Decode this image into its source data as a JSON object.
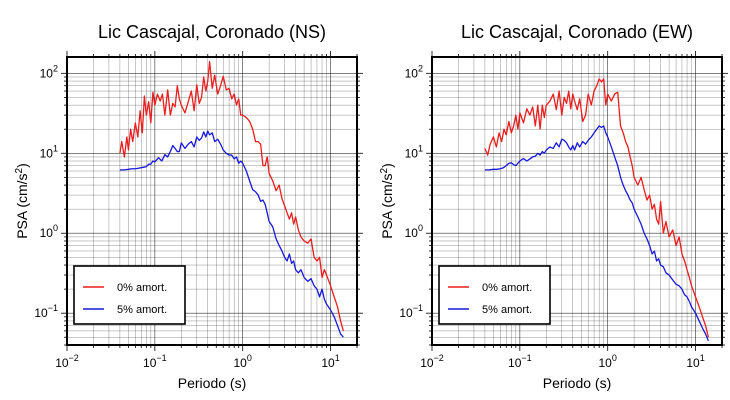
{
  "chart_data": [
    {
      "type": "line",
      "title": "Lic Cascajal, Coronado (NS)",
      "xlabel": "Periodo (s)",
      "ylabel_main": "PSA (cm/s",
      "ylabel_sup": "2",
      "ylabel_close": ")",
      "xscale": "log",
      "yscale": "log",
      "xlim": [
        0.01,
        20
      ],
      "ylim": [
        0.04,
        160
      ],
      "grid": true,
      "legend_position": "bottom-left",
      "x_tick_labels": [
        {
          "value": 0.01,
          "base": "10",
          "exp": "−2"
        },
        {
          "value": 0.1,
          "base": "10",
          "exp": "−1"
        },
        {
          "value": 1,
          "base": "10",
          "exp": "0"
        },
        {
          "value": 10,
          "base": "10",
          "exp": "1"
        }
      ],
      "y_tick_labels": [
        {
          "value": 0.1,
          "base": "10",
          "exp": "−1"
        },
        {
          "value": 1,
          "base": "10",
          "exp": "0"
        },
        {
          "value": 10,
          "base": "10",
          "exp": "1"
        },
        {
          "value": 100,
          "base": "10",
          "exp": "2"
        }
      ],
      "series": [
        {
          "name": "0% amort.",
          "color": "#ee1c1c",
          "x": [
            0.04,
            0.042,
            0.045,
            0.048,
            0.05,
            0.053,
            0.056,
            0.06,
            0.064,
            0.068,
            0.072,
            0.076,
            0.08,
            0.085,
            0.09,
            0.095,
            0.1,
            0.107,
            0.115,
            0.122,
            0.13,
            0.14,
            0.15,
            0.16,
            0.17,
            0.18,
            0.19,
            0.2,
            0.22,
            0.24,
            0.26,
            0.28,
            0.3,
            0.32,
            0.34,
            0.36,
            0.38,
            0.4,
            0.42,
            0.45,
            0.48,
            0.52,
            0.56,
            0.6,
            0.65,
            0.7,
            0.75,
            0.8,
            0.85,
            0.9,
            0.95,
            1.0,
            1.1,
            1.2,
            1.3,
            1.4,
            1.5,
            1.6,
            1.7,
            1.8,
            1.9,
            2.0,
            2.2,
            2.4,
            2.6,
            2.8,
            3.0,
            3.2,
            3.4,
            3.6,
            3.8,
            4.0,
            4.3,
            4.6,
            5.0,
            5.5,
            6.0,
            6.5,
            7.0,
            7.5,
            8.0,
            8.5,
            9.0,
            10,
            11,
            12,
            13,
            14
          ],
          "values": [
            10,
            14,
            9,
            16,
            11,
            20,
            14,
            24,
            16,
            34,
            18,
            52,
            30,
            44,
            24,
            58,
            40,
            55,
            45,
            55,
            30,
            62,
            30,
            42,
            38,
            70,
            48,
            40,
            32,
            44,
            60,
            34,
            72,
            42,
            50,
            90,
            60,
            80,
            140,
            65,
            95,
            55,
            70,
            92,
            62,
            65,
            48,
            55,
            40,
            48,
            30,
            30,
            28,
            25,
            20,
            14,
            14,
            13,
            7,
            7,
            9,
            5.6,
            4.5,
            3.4,
            4.0,
            2.7,
            2.2,
            1.8,
            1.5,
            1.8,
            1.3,
            1.6,
            1.1,
            0.9,
            0.8,
            0.75,
            0.85,
            0.5,
            0.45,
            0.5,
            0.28,
            0.35,
            0.3,
            0.22,
            0.16,
            0.12,
            0.08,
            0.06
          ]
        },
        {
          "name": "5% amort.",
          "color": "#1818dd",
          "x": [
            0.04,
            0.045,
            0.05,
            0.055,
            0.06,
            0.065,
            0.07,
            0.075,
            0.08,
            0.085,
            0.09,
            0.095,
            0.1,
            0.11,
            0.12,
            0.13,
            0.14,
            0.15,
            0.16,
            0.17,
            0.18,
            0.19,
            0.2,
            0.22,
            0.24,
            0.26,
            0.28,
            0.3,
            0.32,
            0.34,
            0.36,
            0.38,
            0.4,
            0.42,
            0.45,
            0.48,
            0.52,
            0.56,
            0.6,
            0.65,
            0.7,
            0.75,
            0.8,
            0.85,
            0.9,
            0.95,
            1.0,
            1.1,
            1.2,
            1.3,
            1.4,
            1.5,
            1.6,
            1.7,
            1.8,
            1.9,
            2.0,
            2.2,
            2.4,
            2.6,
            2.8,
            3.0,
            3.2,
            3.4,
            3.6,
            3.8,
            4.0,
            4.3,
            4.6,
            5.0,
            5.5,
            6.0,
            6.5,
            7.0,
            7.5,
            8.0,
            8.5,
            9.0,
            10,
            11,
            12,
            13,
            14
          ],
          "values": [
            6.2,
            6.2,
            6.3,
            6.4,
            6.4,
            6.5,
            6.6,
            6.7,
            6.8,
            7.3,
            7.3,
            8.0,
            7.8,
            8.8,
            8.0,
            9.6,
            9.0,
            10.5,
            12.5,
            11.5,
            10.5,
            10.5,
            13.5,
            11.5,
            13.0,
            14.0,
            12.0,
            16.0,
            14.5,
            15.5,
            18.5,
            16.0,
            19.0,
            17.0,
            18.0,
            14.0,
            15.0,
            13.0,
            11.0,
            10.0,
            9.5,
            9.5,
            8.5,
            9.0,
            7.5,
            8.0,
            7.5,
            6.0,
            4.5,
            3.5,
            3.3,
            3.0,
            2.5,
            2.6,
            2.3,
            1.8,
            1.4,
            1.2,
            0.85,
            0.7,
            0.6,
            0.5,
            0.45,
            0.55,
            0.42,
            0.45,
            0.35,
            0.32,
            0.35,
            0.28,
            0.25,
            0.27,
            0.22,
            0.2,
            0.16,
            0.2,
            0.15,
            0.13,
            0.11,
            0.09,
            0.07,
            0.055,
            0.05
          ]
        }
      ]
    },
    {
      "type": "line",
      "title": "Lic Cascajal, Coronado (EW)",
      "xlabel": "Periodo (s)",
      "ylabel_main": "PSA (cm/s",
      "ylabel_sup": "2",
      "ylabel_close": ")",
      "xscale": "log",
      "yscale": "log",
      "xlim": [
        0.01,
        20
      ],
      "ylim": [
        0.04,
        160
      ],
      "grid": true,
      "legend_position": "bottom-left",
      "x_tick_labels": [
        {
          "value": 0.01,
          "base": "10",
          "exp": "−2"
        },
        {
          "value": 0.1,
          "base": "10",
          "exp": "−1"
        },
        {
          "value": 1,
          "base": "10",
          "exp": "0"
        },
        {
          "value": 10,
          "base": "10",
          "exp": "1"
        }
      ],
      "y_tick_labels": [
        {
          "value": 0.1,
          "base": "10",
          "exp": "−1"
        },
        {
          "value": 1,
          "base": "10",
          "exp": "0"
        },
        {
          "value": 10,
          "base": "10",
          "exp": "1"
        },
        {
          "value": 100,
          "base": "10",
          "exp": "2"
        }
      ],
      "series": [
        {
          "name": "0% amort.",
          "color": "#ee1c1c",
          "x": [
            0.04,
            0.043,
            0.046,
            0.05,
            0.054,
            0.058,
            0.062,
            0.066,
            0.07,
            0.075,
            0.08,
            0.085,
            0.09,
            0.095,
            0.1,
            0.11,
            0.12,
            0.13,
            0.14,
            0.15,
            0.16,
            0.17,
            0.18,
            0.19,
            0.2,
            0.22,
            0.24,
            0.26,
            0.28,
            0.3,
            0.32,
            0.34,
            0.36,
            0.38,
            0.4,
            0.42,
            0.45,
            0.48,
            0.52,
            0.56,
            0.6,
            0.65,
            0.7,
            0.75,
            0.8,
            0.85,
            0.9,
            0.95,
            1.0,
            1.1,
            1.2,
            1.3,
            1.4,
            1.5,
            1.6,
            1.7,
            1.8,
            1.9,
            2.0,
            2.2,
            2.4,
            2.6,
            2.8,
            3.0,
            3.2,
            3.4,
            3.6,
            3.8,
            4.0,
            4.3,
            4.6,
            5.0,
            5.5,
            6.0,
            6.5,
            7.0,
            7.5,
            8.0,
            8.5,
            9.0,
            10,
            11,
            12,
            13,
            14
          ],
          "values": [
            11.5,
            9.5,
            13,
            16,
            12,
            18,
            14,
            20,
            17,
            25,
            18,
            22,
            30,
            20,
            32,
            24,
            36,
            30,
            38,
            22,
            40,
            20,
            40,
            28,
            40,
            45,
            55,
            35,
            60,
            30,
            50,
            42,
            60,
            36,
            55,
            45,
            35,
            48,
            25,
            30,
            55,
            40,
            60,
            70,
            85,
            78,
            85,
            40,
            55,
            45,
            55,
            58,
            22,
            18,
            14,
            12,
            9,
            7,
            5,
            4,
            5,
            3.5,
            2.6,
            3.0,
            2.0,
            2.3,
            1.5,
            1.3,
            2.5,
            1.0,
            1.4,
            0.9,
            1.1,
            0.7,
            0.9,
            0.55,
            0.45,
            0.35,
            0.28,
            0.22,
            0.16,
            0.12,
            0.09,
            0.07,
            0.05
          ]
        },
        {
          "name": "5% amort.",
          "color": "#1818dd",
          "x": [
            0.04,
            0.045,
            0.05,
            0.055,
            0.06,
            0.065,
            0.07,
            0.075,
            0.08,
            0.085,
            0.09,
            0.095,
            0.1,
            0.11,
            0.12,
            0.13,
            0.14,
            0.15,
            0.16,
            0.17,
            0.18,
            0.19,
            0.2,
            0.22,
            0.24,
            0.26,
            0.28,
            0.3,
            0.32,
            0.34,
            0.36,
            0.38,
            0.4,
            0.42,
            0.45,
            0.48,
            0.52,
            0.56,
            0.6,
            0.65,
            0.7,
            0.75,
            0.8,
            0.85,
            0.9,
            0.95,
            1.0,
            1.1,
            1.2,
            1.3,
            1.4,
            1.5,
            1.6,
            1.7,
            1.8,
            1.9,
            2.0,
            2.2,
            2.4,
            2.6,
            2.8,
            3.0,
            3.2,
            3.4,
            3.6,
            3.8,
            4.0,
            4.3,
            4.6,
            5.0,
            5.5,
            6.0,
            6.5,
            7.0,
            7.5,
            8.0,
            8.5,
            9.0,
            10,
            11,
            12,
            13,
            14
          ],
          "values": [
            6.2,
            6.2,
            6.3,
            6.3,
            6.4,
            6.6,
            7.0,
            7.5,
            7.6,
            7.2,
            7.0,
            7.5,
            8.0,
            8.6,
            8.0,
            8.5,
            9.0,
            9.2,
            10.0,
            9.5,
            10.5,
            10.0,
            11.0,
            12.0,
            11.5,
            13.5,
            12.0,
            15.0,
            14.5,
            13.5,
            12.0,
            11.0,
            12.5,
            11.0,
            13.5,
            12.0,
            14.0,
            13.0,
            14.5,
            16.0,
            18.0,
            20.0,
            22.0,
            21.0,
            22.0,
            18.0,
            16.0,
            12.0,
            9.0,
            7.0,
            5.0,
            4.0,
            3.4,
            3.0,
            2.6,
            2.4,
            2.0,
            1.6,
            1.3,
            1.0,
            0.85,
            0.7,
            0.55,
            0.6,
            0.45,
            0.48,
            0.4,
            0.38,
            0.32,
            0.3,
            0.26,
            0.23,
            0.22,
            0.2,
            0.17,
            0.16,
            0.14,
            0.12,
            0.1,
            0.08,
            0.065,
            0.055,
            0.045
          ]
        }
      ]
    }
  ]
}
